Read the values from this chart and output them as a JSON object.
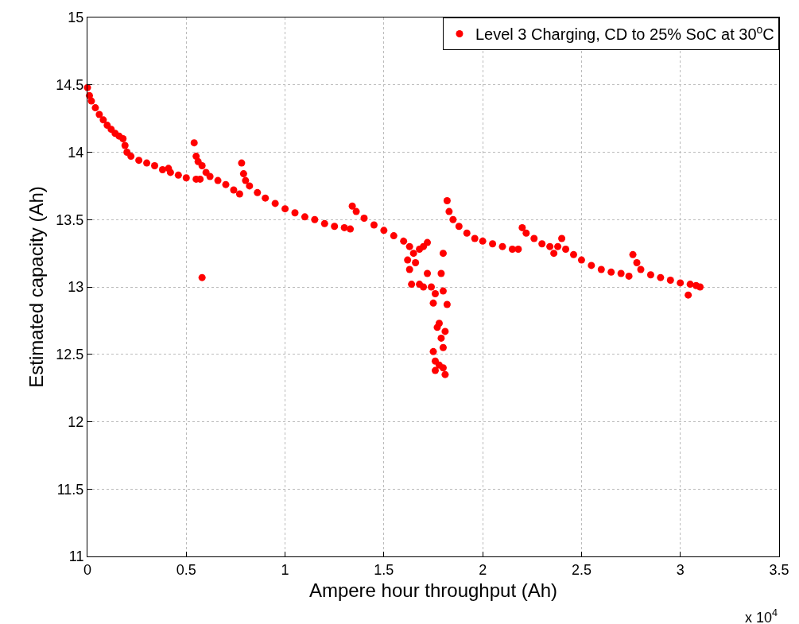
{
  "chart_data": {
    "type": "scatter",
    "xlabel": "Ampere hour throughput (Ah)",
    "ylabel": "Estimated capacity (Ah)",
    "xlim": [
      0,
      3.5
    ],
    "xticks": [
      0,
      0.5,
      1,
      1.5,
      2,
      2.5,
      3,
      3.5
    ],
    "ylim": [
      11,
      15
    ],
    "yticks": [
      11,
      11.5,
      12,
      12.5,
      13,
      13.5,
      14,
      14.5,
      15
    ],
    "grid": true,
    "legend": "top right",
    "marker": "circle",
    "annotations": [
      "x 10$^{4}$"
    ],
    "series": [
      {
        "name": "Level 3 Charging, CD to 25% SoC at 30$^{o}$C",
        "color": "#ff0000",
        "x": [
          0,
          0.01,
          0.02,
          0.04,
          0.06,
          0.08,
          0.1,
          0.12,
          0.14,
          0.16,
          0.18,
          0.19,
          0.2,
          0.22,
          0.26,
          0.3,
          0.34,
          0.38,
          0.41,
          0.42,
          0.46,
          0.5,
          0.55,
          0.54,
          0.55,
          0.56,
          0.58,
          0.57,
          0.58,
          0.6,
          0.62,
          0.66,
          0.7,
          0.74,
          0.77,
          0.78,
          0.79,
          0.8,
          0.82,
          0.86,
          0.9,
          0.95,
          1.0,
          1.05,
          1.1,
          1.15,
          1.2,
          1.25,
          1.3,
          1.33,
          1.34,
          1.36,
          1.4,
          1.45,
          1.5,
          1.55,
          1.6,
          1.63,
          1.65,
          1.62,
          1.63,
          1.66,
          1.68,
          1.7,
          1.72,
          1.64,
          1.68,
          1.7,
          1.72,
          1.74,
          1.75,
          1.76,
          1.77,
          1.78,
          1.75,
          1.76,
          1.76,
          1.78,
          1.79,
          1.8,
          1.8,
          1.81,
          1.81,
          1.82,
          1.8,
          1.79,
          1.8,
          1.82,
          1.83,
          1.85,
          1.88,
          1.92,
          1.96,
          2.0,
          2.05,
          2.1,
          2.15,
          2.18,
          2.2,
          2.22,
          2.26,
          2.3,
          2.34,
          2.36,
          2.38,
          2.4,
          2.42,
          2.46,
          2.5,
          2.55,
          2.6,
          2.65,
          2.7,
          2.74,
          2.76,
          2.78,
          2.8,
          2.85,
          2.9,
          2.95,
          3.0,
          3.04,
          3.05,
          3.08,
          3.1
        ],
        "values": [
          14.48,
          14.42,
          14.38,
          14.33,
          14.28,
          14.24,
          14.2,
          14.17,
          14.14,
          14.12,
          14.1,
          14.05,
          14.0,
          13.97,
          13.94,
          13.92,
          13.9,
          13.87,
          13.88,
          13.85,
          13.83,
          13.81,
          13.8,
          14.07,
          13.97,
          13.93,
          13.9,
          13.8,
          13.07,
          13.85,
          13.82,
          13.79,
          13.76,
          13.72,
          13.69,
          13.92,
          13.84,
          13.79,
          13.75,
          13.7,
          13.66,
          13.62,
          13.58,
          13.55,
          13.52,
          13.5,
          13.47,
          13.45,
          13.44,
          13.43,
          13.6,
          13.56,
          13.51,
          13.46,
          13.42,
          13.38,
          13.34,
          13.3,
          13.25,
          13.2,
          13.13,
          13.18,
          13.28,
          13.3,
          13.33,
          13.02,
          13.02,
          13.0,
          13.1,
          13.0,
          12.88,
          12.95,
          12.7,
          12.73,
          12.52,
          12.45,
          12.38,
          12.42,
          12.62,
          12.55,
          12.4,
          12.35,
          12.67,
          12.87,
          13.25,
          13.1,
          12.97,
          13.64,
          13.56,
          13.5,
          13.45,
          13.4,
          13.36,
          13.34,
          13.32,
          13.3,
          13.28,
          13.28,
          13.44,
          13.4,
          13.36,
          13.32,
          13.3,
          13.25,
          13.3,
          13.36,
          13.28,
          13.24,
          13.2,
          13.16,
          13.13,
          13.11,
          13.1,
          13.08,
          13.24,
          13.18,
          13.13,
          13.09,
          13.07,
          13.05,
          13.03,
          12.94,
          13.02,
          13.01,
          13.0
        ]
      }
    ]
  }
}
